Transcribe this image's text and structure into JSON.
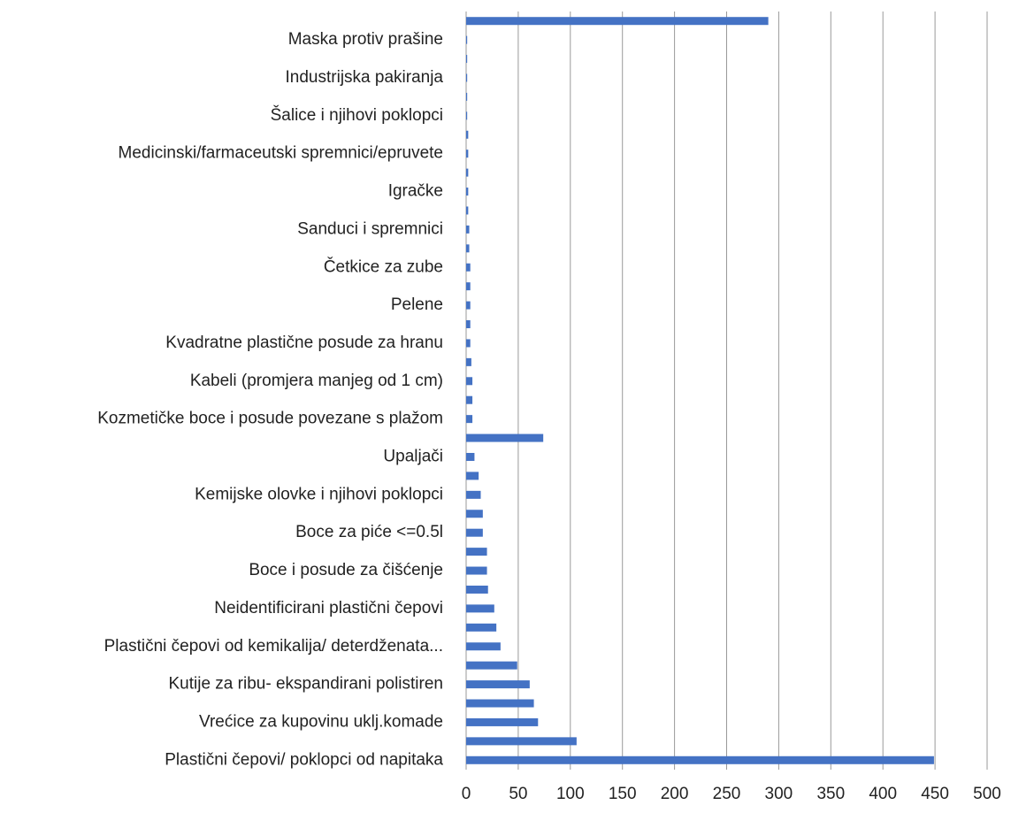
{
  "chart_data": {
    "type": "barh",
    "categories": [
      null,
      "Maska protiv prašine",
      null,
      "Industrijska pakiranja",
      null,
      "Šalice i njihovi poklopci",
      null,
      "Medicinski/farmaceutski spremnici/epruvete",
      null,
      "Igračke",
      null,
      "Sanduci i spremnici",
      null,
      "Četkice za zube",
      null,
      "Pelene",
      null,
      "Kvadratne plastične posude za hranu",
      null,
      "Kabeli (promjera manjeg od 1 cm)",
      null,
      "Kozmetičke boce i posude povezane s plažom",
      null,
      "Upaljači",
      null,
      "Kemijske olovke i njihovi poklopci",
      null,
      "Boce za piće  <=0.5l",
      null,
      "Boce i posude za čišćenje",
      null,
      "Neidentificirani plastični čepovi",
      null,
      "Plastični čepovi od kemikalija/ deterdženata...",
      null,
      "Kutije za ribu- ekspandirani polistiren",
      null,
      "Vrećice za kupovinu uklj.komade",
      null,
      "Plastični čepovi/ poklopci od napitaka"
    ],
    "values": [
      290,
      1,
      1,
      1,
      1,
      1,
      2,
      2,
      2,
      2,
      2,
      3,
      3,
      4,
      4,
      4,
      4,
      4,
      5,
      6,
      6,
      6,
      74,
      8,
      12,
      14,
      16,
      16,
      20,
      20,
      21,
      27,
      29,
      33,
      49,
      61,
      65,
      69,
      106,
      449
    ],
    "color": "#4472c4",
    "xlim": [
      0,
      500
    ],
    "xticks": [
      0,
      50,
      100,
      150,
      200,
      250,
      300,
      350,
      400,
      450,
      500
    ],
    "grid": true
  }
}
